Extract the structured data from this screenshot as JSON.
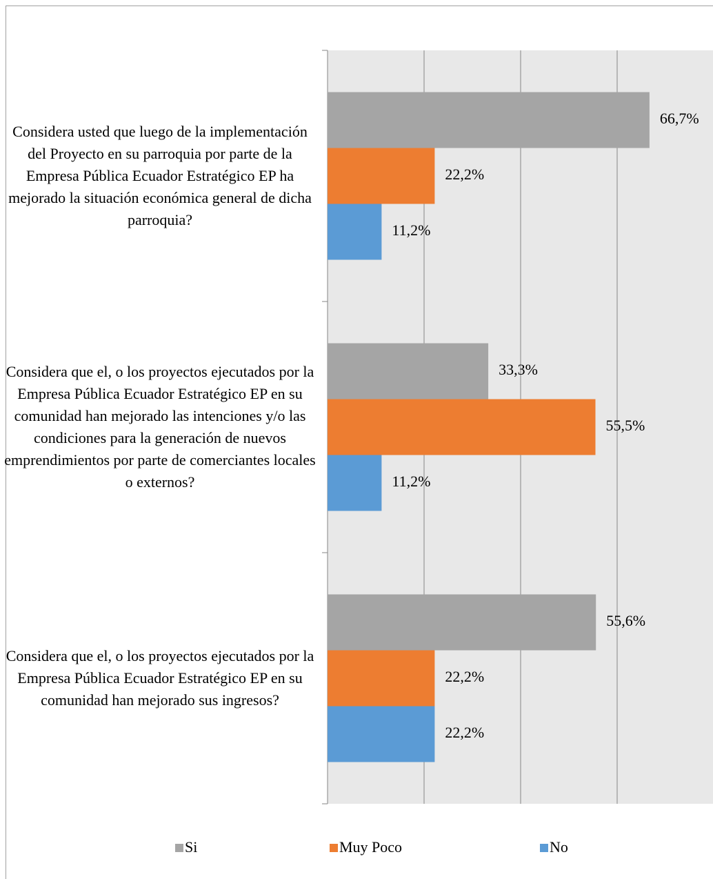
{
  "chart_data": {
    "type": "hbar",
    "categories": [
      "Considera usted que luego de la implementación del Proyecto en su parroquia por parte de la Empresa Pública Ecuador Estratégico EP ha mejorado la situación económica general de dicha parroquia?",
      "Considera que el, o los proyectos ejecutados por la Empresa Pública Ecuador Estratégico EP en su comunidad han mejorado las intenciones y/o las condiciones para la generación de nuevos emprendimientos por parte de comerciantes locales o externos?",
      "Considera que el, o los proyectos ejecutados por la Empresa Pública Ecuador Estratégico EP en su comunidad han mejorado sus ingresos?"
    ],
    "series": [
      {
        "name": "Si",
        "color": "#a5a5a5",
        "values": [
          66.7,
          33.3,
          55.6
        ],
        "value_labels": [
          "66,7%",
          "33,3%",
          "55,6%"
        ]
      },
      {
        "name": "Muy Poco",
        "color": "#ed7d31",
        "values": [
          22.2,
          55.5,
          22.2
        ],
        "value_labels": [
          "22,2%",
          "55,5%",
          "22,2%"
        ]
      },
      {
        "name": "No",
        "color": "#5b9bd5",
        "values": [
          11.2,
          11.2,
          22.2
        ],
        "value_labels": [
          "11,2%",
          "11,2%",
          "22,2%"
        ]
      }
    ],
    "xlim": [
      0,
      80
    ],
    "xticks": [
      0,
      20,
      40,
      60,
      80
    ],
    "grid": true,
    "legend": "bottom"
  }
}
